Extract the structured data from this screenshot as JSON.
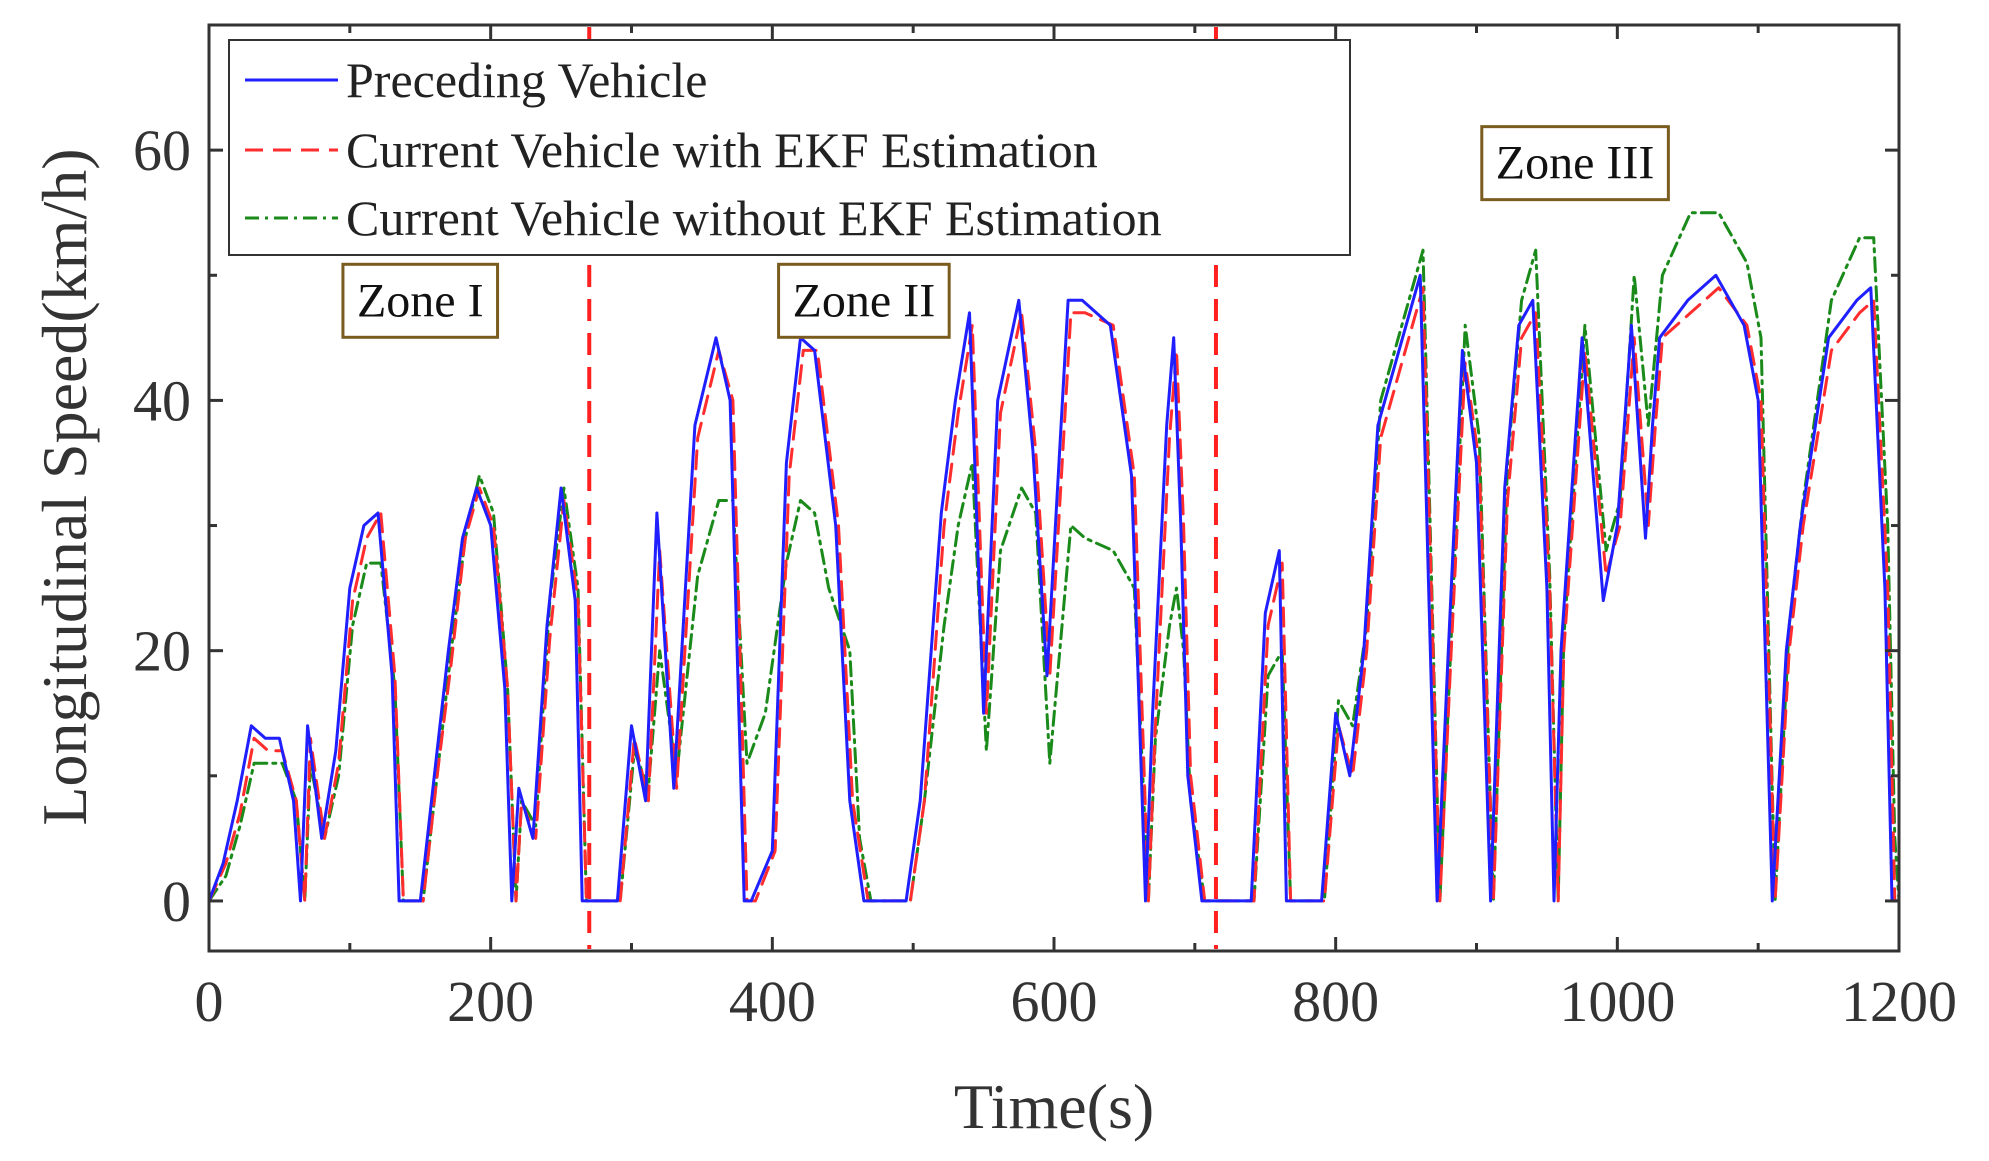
{
  "chart_data": {
    "type": "line",
    "title": "",
    "xlabel": "Time(s)",
    "ylabel": "Longitudinal Speed(km/h)",
    "xlim": [
      0,
      1200
    ],
    "ylim": [
      -4,
      70
    ],
    "xticks": [
      0,
      200,
      400,
      600,
      800,
      1000,
      1200
    ],
    "yticks": [
      0,
      20,
      40,
      60
    ],
    "grid": false,
    "legend_position": "top-left",
    "zone_boundaries": [
      270,
      715
    ],
    "zones": [
      {
        "label": "Zone I",
        "x": 150,
        "y": 48
      },
      {
        "label": "Zone II",
        "x": 465,
        "y": 48
      },
      {
        "label": "Zone III",
        "x": 970,
        "y": 59
      }
    ],
    "series": [
      {
        "name": "Preceding Vehicle",
        "color": "#1f1fff",
        "dash": "solid",
        "x": [
          0,
          10,
          20,
          30,
          40,
          50,
          60,
          65,
          70,
          80,
          90,
          100,
          110,
          120,
          130,
          135,
          150,
          160,
          170,
          180,
          190,
          200,
          210,
          215,
          220,
          230,
          240,
          250,
          260,
          265,
          270,
          290,
          300,
          310,
          318,
          330,
          345,
          360,
          370,
          380,
          385,
          400,
          410,
          420,
          430,
          445,
          455,
          465,
          495,
          505,
          520,
          530,
          540,
          550,
          560,
          575,
          585,
          595,
          610,
          620,
          640,
          655,
          665,
          670,
          680,
          685,
          690,
          695,
          705,
          710,
          715,
          740,
          750,
          760,
          765,
          790,
          800,
          810,
          820,
          830,
          850,
          860,
          872,
          880,
          890,
          900,
          910,
          920,
          930,
          940,
          950,
          955,
          960,
          975,
          990,
          1000,
          1010,
          1020,
          1025,
          1030,
          1050,
          1070,
          1090,
          1100,
          1110,
          1120,
          1130,
          1150,
          1170,
          1180,
          1190,
          1195,
          1200
        ],
        "values": [
          0,
          3,
          8,
          14,
          13,
          13,
          8,
          0,
          14,
          5,
          12,
          25,
          30,
          31,
          18,
          0,
          0,
          10,
          20,
          29,
          33,
          30,
          17,
          0,
          9,
          5,
          22,
          33,
          24,
          0,
          0,
          0,
          14,
          8,
          31,
          9,
          38,
          45,
          40,
          0,
          0,
          4,
          35,
          45,
          44,
          30,
          8,
          0,
          0,
          8,
          31,
          40,
          47,
          15,
          40,
          48,
          36,
          18,
          48,
          48,
          46,
          34,
          0,
          15,
          38,
          45,
          30,
          10,
          0,
          0,
          0,
          0,
          23,
          28,
          0,
          0,
          15,
          10,
          20,
          38,
          46,
          50,
          0,
          20,
          44,
          35,
          0,
          33,
          46,
          48,
          25,
          0,
          20,
          45,
          24,
          30,
          46,
          29,
          38,
          45,
          48,
          50,
          46,
          40,
          0,
          20,
          30,
          45,
          48,
          49,
          25,
          0,
          0
        ]
      },
      {
        "name": "Current Vehicle with EKF Estimation",
        "color": "#ff2d2d",
        "dash": "dashed",
        "x": [
          0,
          12,
          22,
          32,
          42,
          52,
          62,
          68,
          72,
          82,
          92,
          102,
          112,
          122,
          132,
          138,
          152,
          162,
          172,
          182,
          192,
          202,
          212,
          218,
          222,
          232,
          242,
          252,
          262,
          268,
          272,
          292,
          302,
          312,
          320,
          332,
          347,
          362,
          372,
          382,
          388,
          402,
          412,
          422,
          432,
          447,
          457,
          468,
          498,
          508,
          522,
          532,
          542,
          552,
          562,
          577,
          587,
          597,
          612,
          622,
          642,
          657,
          667,
          672,
          682,
          687,
          692,
          697,
          707,
          712,
          717,
          742,
          752,
          762,
          768,
          792,
          802,
          812,
          822,
          832,
          852,
          862,
          874,
          882,
          892,
          902,
          912,
          922,
          932,
          942,
          952,
          958,
          962,
          977,
          992,
          1002,
          1012,
          1022,
          1027,
          1032,
          1052,
          1072,
          1092,
          1102,
          1112,
          1122,
          1132,
          1152,
          1172,
          1182,
          1192,
          1197,
          1200
        ],
        "values": [
          0,
          3,
          7,
          13,
          12,
          12,
          8,
          0,
          13,
          5,
          11,
          24,
          29,
          31,
          18,
          0,
          0,
          10,
          19,
          29,
          33,
          30,
          17,
          0,
          8,
          5,
          21,
          32,
          24,
          0,
          0,
          0,
          13,
          8,
          28,
          9,
          37,
          44,
          40,
          0,
          0,
          4,
          34,
          44,
          44,
          30,
          8,
          0,
          0,
          8,
          30,
          39,
          46,
          15,
          39,
          47,
          36,
          18,
          47,
          47,
          46,
          34,
          0,
          14,
          37,
          44,
          30,
          10,
          0,
          0,
          0,
          0,
          22,
          27,
          0,
          0,
          14,
          10,
          20,
          37,
          45,
          49,
          0,
          20,
          43,
          35,
          0,
          32,
          45,
          47,
          25,
          0,
          20,
          44,
          26,
          30,
          45,
          30,
          38,
          45,
          47,
          49,
          46,
          40,
          0,
          20,
          30,
          44,
          47,
          48,
          25,
          0,
          0
        ]
      },
      {
        "name": "Current Vehicle without EKF Estimation",
        "color": "#1a8a1a",
        "dash": "dash-dot",
        "x": [
          0,
          12,
          22,
          32,
          42,
          52,
          62,
          68,
          72,
          82,
          92,
          102,
          112,
          122,
          132,
          138,
          152,
          162,
          172,
          182,
          192,
          202,
          212,
          218,
          222,
          232,
          242,
          252,
          262,
          268,
          272,
          292,
          302,
          312,
          320,
          332,
          347,
          362,
          372,
          382,
          395,
          410,
          420,
          430,
          440,
          455,
          462,
          470,
          498,
          508,
          522,
          532,
          542,
          552,
          562,
          577,
          587,
          597,
          612,
          622,
          642,
          657,
          667,
          672,
          682,
          687,
          692,
          697,
          707,
          712,
          717,
          742,
          752,
          762,
          768,
          792,
          802,
          812,
          822,
          832,
          852,
          862,
          874,
          882,
          892,
          902,
          912,
          922,
          932,
          942,
          952,
          958,
          962,
          977,
          992,
          1002,
          1012,
          1022,
          1027,
          1032,
          1052,
          1072,
          1092,
          1102,
          1112,
          1122,
          1132,
          1152,
          1172,
          1182,
          1192,
          1197,
          1200
        ],
        "values": [
          0,
          2,
          6,
          11,
          11,
          11,
          8,
          0,
          11,
          5,
          10,
          22,
          27,
          27,
          17,
          0,
          0,
          10,
          20,
          29,
          34,
          31,
          17,
          0,
          8,
          6,
          24,
          33,
          25,
          0,
          0,
          0,
          12,
          9,
          20,
          10,
          26,
          32,
          32,
          11,
          15,
          27,
          32,
          31,
          25,
          20,
          5,
          0,
          0,
          8,
          22,
          30,
          35,
          12,
          28,
          33,
          31,
          11,
          30,
          29,
          28,
          25,
          0,
          13,
          22,
          25,
          20,
          8,
          0,
          0,
          0,
          0,
          18,
          20,
          0,
          0,
          16,
          14,
          22,
          40,
          48,
          52,
          0,
          21,
          46,
          37,
          0,
          35,
          48,
          52,
          26,
          0,
          21,
          46,
          28,
          32,
          50,
          38,
          44,
          50,
          55,
          55,
          51,
          45,
          0,
          22,
          32,
          48,
          53,
          53,
          30,
          5,
          0
        ]
      }
    ]
  }
}
